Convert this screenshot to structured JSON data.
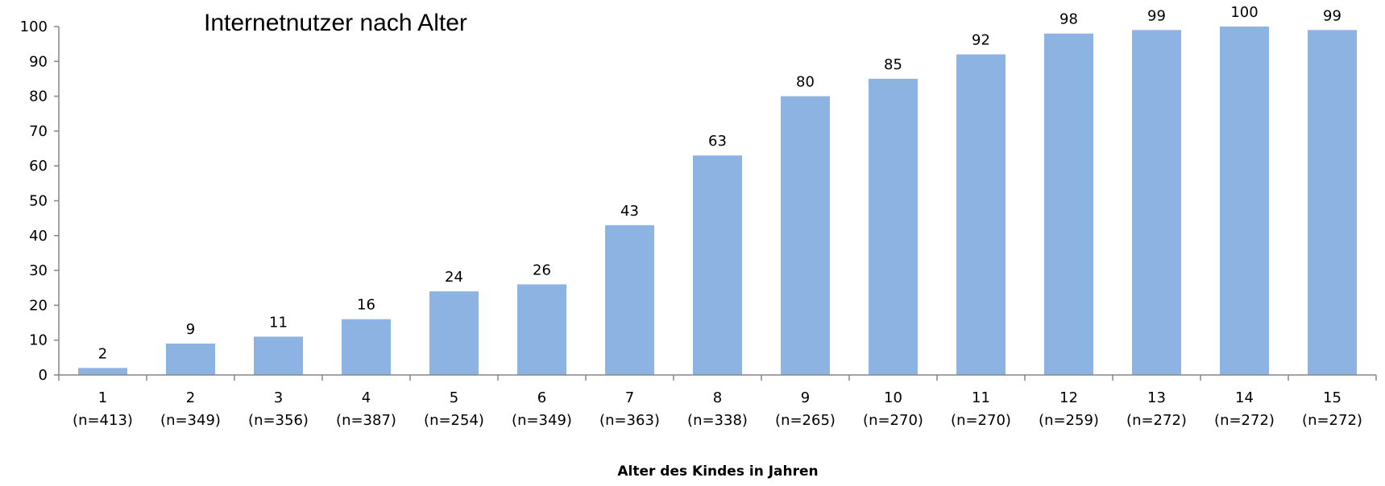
{
  "chart_data": {
    "type": "bar",
    "title": "Internetnutzer nach Alter",
    "xlabel": "Alter des Kindes in Jahren",
    "ylabel": "",
    "ylim": [
      0,
      100
    ],
    "yticks": [
      0,
      10,
      20,
      30,
      40,
      50,
      60,
      70,
      80,
      90,
      100
    ],
    "grid": false,
    "legend": "none",
    "bar_color": "#8DB3E2",
    "categories": [
      "1",
      "2",
      "3",
      "4",
      "5",
      "6",
      "7",
      "8",
      "9",
      "10",
      "11",
      "12",
      "13",
      "14",
      "15"
    ],
    "category_sublabels": [
      "(n=413)",
      "(n=349)",
      "(n=356)",
      "(n=387)",
      "(n=254)",
      "(n=349)",
      "(n=363)",
      "(n=338)",
      "(n=265)",
      "(n=270)",
      "(n=270)",
      "(n=259)",
      "(n=272)",
      "(n=272)",
      "(n=272)"
    ],
    "values": [
      2,
      9,
      11,
      16,
      24,
      26,
      43,
      63,
      80,
      85,
      92,
      98,
      99,
      100,
      99
    ],
    "data_labels": [
      "2",
      "9",
      "11",
      "16",
      "24",
      "26",
      "43",
      "63",
      "80",
      "85",
      "92",
      "98",
      "99",
      "100",
      "99"
    ]
  }
}
